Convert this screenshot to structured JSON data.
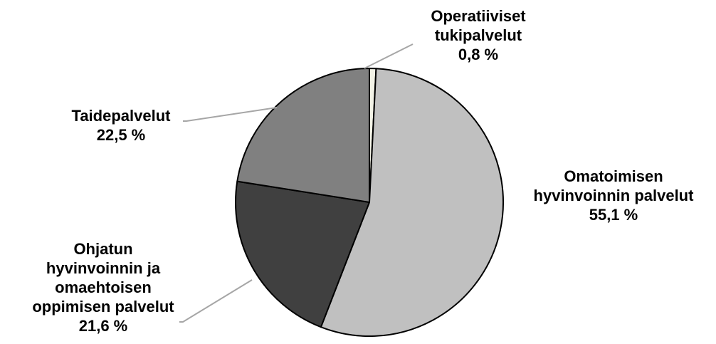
{
  "chart_data": {
    "type": "pie",
    "title": "",
    "slices": [
      {
        "label_lines": [
          "Operatiiviset",
          "tukipalvelut"
        ],
        "value": 0.8,
        "value_text": "0,8 %",
        "color": "#f2f2e6"
      },
      {
        "label_lines": [
          "Omatoimisen",
          "hyvinvoinnin palvelut"
        ],
        "value": 55.1,
        "value_text": "55,1 %",
        "color": "#c0c0c0"
      },
      {
        "label_lines": [
          "Ohjatun",
          "hyvinvoinnin ja",
          "omaehtoisen",
          "oppimisen palvelut"
        ],
        "value": 21.6,
        "value_text": "21,6 %",
        "color": "#404040"
      },
      {
        "label_lines": [
          "Taidepalvelut"
        ],
        "value": 22.5,
        "value_text": "22,5 %",
        "color": "#808080"
      }
    ],
    "start_at": "12 o'clock",
    "direction": "clockwise",
    "outline_color": "#000000",
    "leader_line_color": "#a6a6a6"
  }
}
